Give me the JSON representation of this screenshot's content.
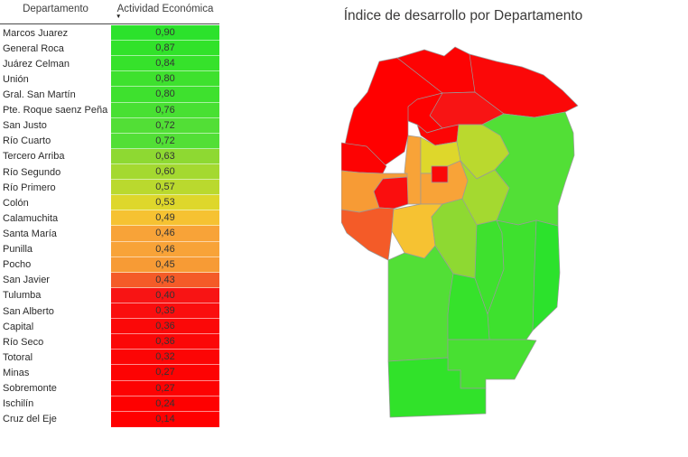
{
  "title": "Índice de desarrollo por Departamento",
  "table": {
    "columns": [
      {
        "label": "Departamento",
        "sorted": false
      },
      {
        "label": "Actividad Económica",
        "sorted": true
      }
    ],
    "sort_direction": "descending",
    "sort_glyph": "▼",
    "rows": [
      {
        "id": "marcos-juarez",
        "name": "Marcos Juarez",
        "value": "0,90",
        "color": "#2ce22c"
      },
      {
        "id": "general-roca",
        "name": "General Roca",
        "value": "0,87",
        "color": "#31e22a"
      },
      {
        "id": "juarez-celman",
        "name": "Juárez Celman",
        "value": "0,84",
        "color": "#36e22b"
      },
      {
        "id": "union",
        "name": "Unión",
        "value": "0,80",
        "color": "#3ee12e"
      },
      {
        "id": "gral-san-martin",
        "name": "Gral. San Martín",
        "value": "0,80",
        "color": "#3ee12e"
      },
      {
        "id": "saenz-pena",
        "name": "Pte. Roque saenz Peña",
        "value": "0,76",
        "color": "#48e032"
      },
      {
        "id": "san-justo",
        "name": "San Justo",
        "value": "0,72",
        "color": "#52df36"
      },
      {
        "id": "rio-cuarto",
        "name": "Río Cuarto",
        "value": "0,72",
        "color": "#52df36"
      },
      {
        "id": "tercero-arriba",
        "name": "Tercero Arriba",
        "value": "0,63",
        "color": "#8ed932"
      },
      {
        "id": "rio-segundo",
        "name": "Río Segundo",
        "value": "0,60",
        "color": "#a4d930"
      },
      {
        "id": "rio-primero",
        "name": "Río Primero",
        "value": "0,57",
        "color": "#bad92e"
      },
      {
        "id": "colon",
        "name": "Colón",
        "value": "0,53",
        "color": "#ded72b"
      },
      {
        "id": "calamuchita",
        "name": "Calamuchita",
        "value": "0,49",
        "color": "#f6c232"
      },
      {
        "id": "santa-maria",
        "name": "Santa María",
        "value": "0,46",
        "color": "#f8a338"
      },
      {
        "id": "punilla",
        "name": "Punilla",
        "value": "0,46",
        "color": "#f8a338"
      },
      {
        "id": "pocho",
        "name": "Pocho",
        "value": "0,45",
        "color": "#f79b35"
      },
      {
        "id": "san-javier",
        "name": "San Javier",
        "value": "0,43",
        "color": "#f45b28"
      },
      {
        "id": "tulumba",
        "name": "Tulumba",
        "value": "0,40",
        "color": "#f81414"
      },
      {
        "id": "san-alberto",
        "name": "San Alberto",
        "value": "0,39",
        "color": "#fa0e0e"
      },
      {
        "id": "capital",
        "name": "Capital",
        "value": "0,36",
        "color": "#fb0808"
      },
      {
        "id": "rio-seco",
        "name": "Río Seco",
        "value": "0,36",
        "color": "#fb0808"
      },
      {
        "id": "totoral",
        "name": "Totoral",
        "value": "0,32",
        "color": "#fc0505"
      },
      {
        "id": "minas",
        "name": "Minas",
        "value": "0,27",
        "color": "#fd0303"
      },
      {
        "id": "sobremonte",
        "name": "Sobremonte",
        "value": "0,27",
        "color": "#fd0303"
      },
      {
        "id": "ischilin",
        "name": "Ischilín",
        "value": "0,24",
        "color": "#fe0101"
      },
      {
        "id": "cruz-del-eje",
        "name": "Cruz del Eje",
        "value": "0,14",
        "color": "#ff0000"
      }
    ]
  },
  "map": {
    "title": "Índice de desarrollo por Departamento",
    "stroke_color": "#9a9a9a",
    "region_count": 26
  },
  "chart_data": {
    "type": "table",
    "title": "Índice de desarrollo por Departamento",
    "columns": [
      "Departamento",
      "Actividad Económica"
    ],
    "sort": {
      "column": "Actividad Económica",
      "direction": "descending"
    },
    "color_scale": {
      "low": "#ff0000",
      "mid": "#ded72b",
      "high": "#2ce22c",
      "min": 0.14,
      "max": 0.9
    },
    "rows": [
      [
        "Marcos Juarez",
        0.9
      ],
      [
        "General Roca",
        0.87
      ],
      [
        "Juárez Celman",
        0.84
      ],
      [
        "Unión",
        0.8
      ],
      [
        "Gral. San Martín",
        0.8
      ],
      [
        "Pte. Roque saenz Peña",
        0.76
      ],
      [
        "San Justo",
        0.72
      ],
      [
        "Río Cuarto",
        0.72
      ],
      [
        "Tercero Arriba",
        0.63
      ],
      [
        "Río Segundo",
        0.6
      ],
      [
        "Río Primero",
        0.57
      ],
      [
        "Colón",
        0.53
      ],
      [
        "Calamuchita",
        0.49
      ],
      [
        "Santa María",
        0.46
      ],
      [
        "Punilla",
        0.46
      ],
      [
        "Pocho",
        0.45
      ],
      [
        "San Javier",
        0.43
      ],
      [
        "Tulumba",
        0.4
      ],
      [
        "San Alberto",
        0.39
      ],
      [
        "Capital",
        0.36
      ],
      [
        "Río Seco",
        0.36
      ],
      [
        "Totoral",
        0.32
      ],
      [
        "Minas",
        0.27
      ],
      [
        "Sobremonte",
        0.27
      ],
      [
        "Ischilín",
        0.24
      ],
      [
        "Cruz del Eje",
        0.14
      ]
    ]
  }
}
